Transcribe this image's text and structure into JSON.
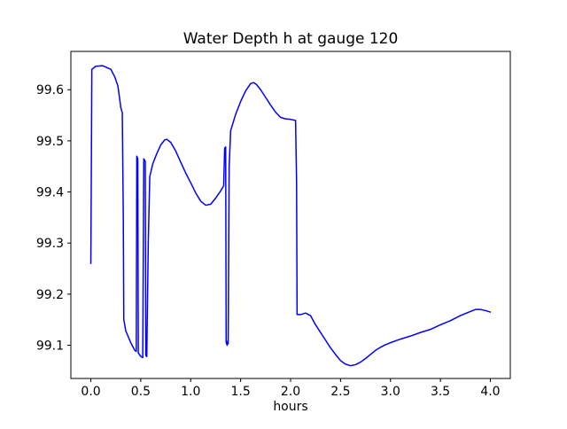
{
  "chart_data": {
    "type": "line",
    "title": "Water Depth h at gauge 120",
    "xlabel": "hours",
    "ylabel": "",
    "xlim": [
      -0.2,
      4.2
    ],
    "ylim": [
      99.035,
      99.675
    ],
    "grid": false,
    "legend": "none",
    "line_color": "#0000ff",
    "spine_color": "#000000",
    "xticks": [
      0.0,
      0.5,
      1.0,
      1.5,
      2.0,
      2.5,
      3.0,
      3.5,
      4.0
    ],
    "xtick_labels": [
      "0.0",
      "0.5",
      "1.0",
      "1.5",
      "2.0",
      "2.5",
      "3.0",
      "3.5",
      "4.0"
    ],
    "yticks": [
      99.1,
      99.2,
      99.3,
      99.4,
      99.5,
      99.6
    ],
    "ytick_labels": [
      "99.1",
      "99.2",
      "99.3",
      "99.4",
      "99.5",
      "99.6"
    ],
    "series": [
      {
        "name": "h",
        "points": [
          [
            0.0,
            99.26
          ],
          [
            0.01,
            99.64
          ],
          [
            0.05,
            99.646
          ],
          [
            0.12,
            99.647
          ],
          [
            0.2,
            99.64
          ],
          [
            0.24,
            99.625
          ],
          [
            0.27,
            99.608
          ],
          [
            0.29,
            99.58
          ],
          [
            0.3,
            99.565
          ],
          [
            0.315,
            99.555
          ],
          [
            0.325,
            99.35
          ],
          [
            0.33,
            99.15
          ],
          [
            0.35,
            99.128
          ],
          [
            0.4,
            99.105
          ],
          [
            0.44,
            99.09
          ],
          [
            0.455,
            99.088
          ],
          [
            0.46,
            99.47
          ],
          [
            0.47,
            99.465
          ],
          [
            0.475,
            99.085
          ],
          [
            0.5,
            99.078
          ],
          [
            0.52,
            99.076
          ],
          [
            0.53,
            99.465
          ],
          [
            0.545,
            99.46
          ],
          [
            0.55,
            99.08
          ],
          [
            0.56,
            99.078
          ],
          [
            0.575,
            99.3
          ],
          [
            0.59,
            99.43
          ],
          [
            0.62,
            99.455
          ],
          [
            0.66,
            99.475
          ],
          [
            0.7,
            99.492
          ],
          [
            0.74,
            99.502
          ],
          [
            0.76,
            99.503
          ],
          [
            0.8,
            99.497
          ],
          [
            0.85,
            99.48
          ],
          [
            0.9,
            99.458
          ],
          [
            0.95,
            99.437
          ],
          [
            1.0,
            99.418
          ],
          [
            1.05,
            99.398
          ],
          [
            1.1,
            99.382
          ],
          [
            1.15,
            99.374
          ],
          [
            1.2,
            99.376
          ],
          [
            1.25,
            99.388
          ],
          [
            1.3,
            99.402
          ],
          [
            1.33,
            99.412
          ],
          [
            1.34,
            99.486
          ],
          [
            1.35,
            99.488
          ],
          [
            1.355,
            99.105
          ],
          [
            1.365,
            99.1
          ],
          [
            1.37,
            99.108
          ],
          [
            1.375,
            99.103
          ],
          [
            1.385,
            99.45
          ],
          [
            1.4,
            99.52
          ],
          [
            1.45,
            99.552
          ],
          [
            1.5,
            99.577
          ],
          [
            1.55,
            99.598
          ],
          [
            1.6,
            99.612
          ],
          [
            1.63,
            99.614
          ],
          [
            1.66,
            99.61
          ],
          [
            1.7,
            99.6
          ],
          [
            1.75,
            99.585
          ],
          [
            1.8,
            99.57
          ],
          [
            1.85,
            99.556
          ],
          [
            1.9,
            99.546
          ],
          [
            1.95,
            99.543
          ],
          [
            2.0,
            99.542
          ],
          [
            2.05,
            99.54
          ],
          [
            2.06,
            99.42
          ],
          [
            2.065,
            99.16
          ],
          [
            2.1,
            99.16
          ],
          [
            2.15,
            99.163
          ],
          [
            2.2,
            99.158
          ],
          [
            2.25,
            99.14
          ],
          [
            2.3,
            99.125
          ],
          [
            2.35,
            99.11
          ],
          [
            2.4,
            99.095
          ],
          [
            2.45,
            99.082
          ],
          [
            2.5,
            99.07
          ],
          [
            2.55,
            99.063
          ],
          [
            2.6,
            99.06
          ],
          [
            2.65,
            99.062
          ],
          [
            2.7,
            99.067
          ],
          [
            2.75,
            99.074
          ],
          [
            2.8,
            99.082
          ],
          [
            2.85,
            99.09
          ],
          [
            2.9,
            99.096
          ],
          [
            2.95,
            99.101
          ],
          [
            3.0,
            99.105
          ],
          [
            3.1,
            99.112
          ],
          [
            3.2,
            99.118
          ],
          [
            3.3,
            99.125
          ],
          [
            3.4,
            99.131
          ],
          [
            3.5,
            99.14
          ],
          [
            3.6,
            99.148
          ],
          [
            3.7,
            99.158
          ],
          [
            3.8,
            99.166
          ],
          [
            3.85,
            99.17
          ],
          [
            3.9,
            99.17
          ],
          [
            3.95,
            99.168
          ],
          [
            4.0,
            99.165
          ]
        ]
      }
    ]
  }
}
